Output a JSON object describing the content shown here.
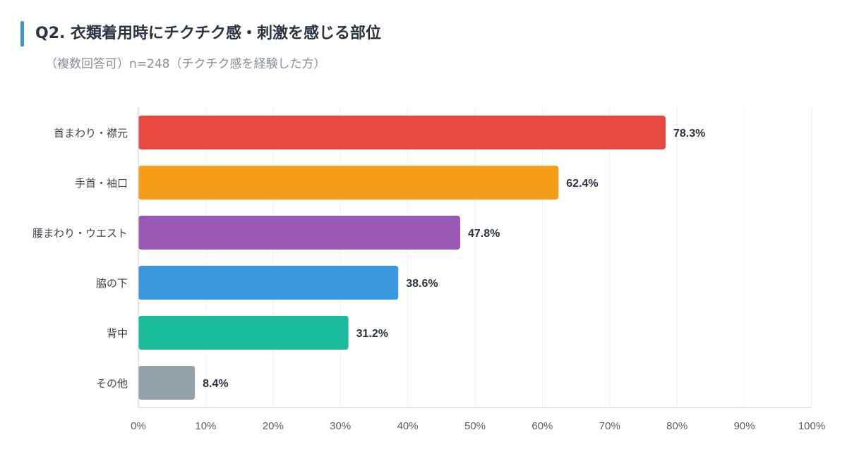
{
  "header": {
    "title": "Q2. 衣類着用時にチクチク感・刺激を感じる部位",
    "subtitle": "（複数回答可）n=248（チクチク感を経験した方）",
    "accent_color": "#3a96dc"
  },
  "chart_data": {
    "type": "bar",
    "orientation": "horizontal",
    "title": "Q2. 衣類着用時にチクチク感・刺激を感じる部位",
    "subtitle": "（複数回答可）n=248（チクチク感を経験した方）",
    "categories": [
      "首まわり・襟元",
      "手首・袖口",
      "腰まわり・ウエスト",
      "脇の下",
      "背中",
      "その他"
    ],
    "values": [
      78.3,
      62.4,
      47.8,
      38.6,
      31.2,
      8.4
    ],
    "value_labels": [
      "78.3%",
      "62.4%",
      "47.8%",
      "38.6%",
      "31.2%",
      "8.4%"
    ],
    "colors": [
      "#e84a42",
      "#f59e17",
      "#9b59b6",
      "#3a97dc",
      "#1abc9c",
      "#95a1a9"
    ],
    "xlim": [
      0,
      100
    ],
    "xticks": [
      0,
      10,
      20,
      30,
      40,
      50,
      60,
      70,
      80,
      90,
      100
    ],
    "xtick_labels": [
      "0%",
      "10%",
      "20%",
      "30%",
      "40%",
      "50%",
      "60%",
      "70%",
      "80%",
      "90%",
      "100%"
    ],
    "xlabel": "",
    "ylabel": "",
    "grid": true,
    "legend": "none"
  }
}
